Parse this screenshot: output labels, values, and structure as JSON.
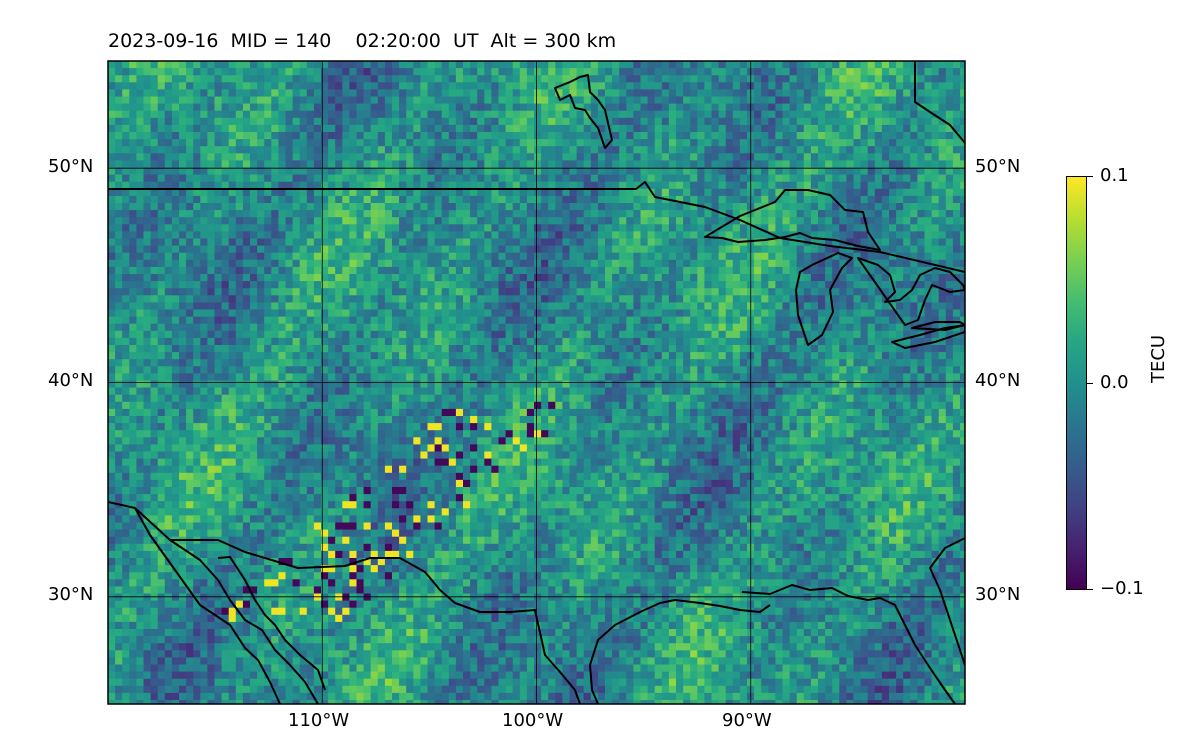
{
  "title": "2023-09-16  MID = 140    02:20:00  UT  Alt = 300 km",
  "map": {
    "lon_range": [
      -120,
      -80
    ],
    "lat_range": [
      25,
      55
    ],
    "lon_gridlines": [
      -110,
      -100,
      -90
    ],
    "lat_gridlines": [
      30,
      40,
      50
    ],
    "lon_labels": [
      "110°W",
      "100°W",
      "90°W"
    ],
    "lat_labels_left": [
      "50°N",
      "40°N",
      "30°N"
    ],
    "lat_labels_right": [
      "50°N",
      "40°N",
      "30°N"
    ]
  },
  "colorbar": {
    "label": "TECU",
    "colormap": "viridis",
    "min": -0.1,
    "max": 0.1,
    "tick_labels": [
      "0.1",
      "0.0",
      "−0.1"
    ]
  },
  "colors": {
    "viridis_low": "#440154",
    "viridis_mid": "#21918c",
    "viridis_high": "#fde725",
    "coastline": "#000000"
  }
}
